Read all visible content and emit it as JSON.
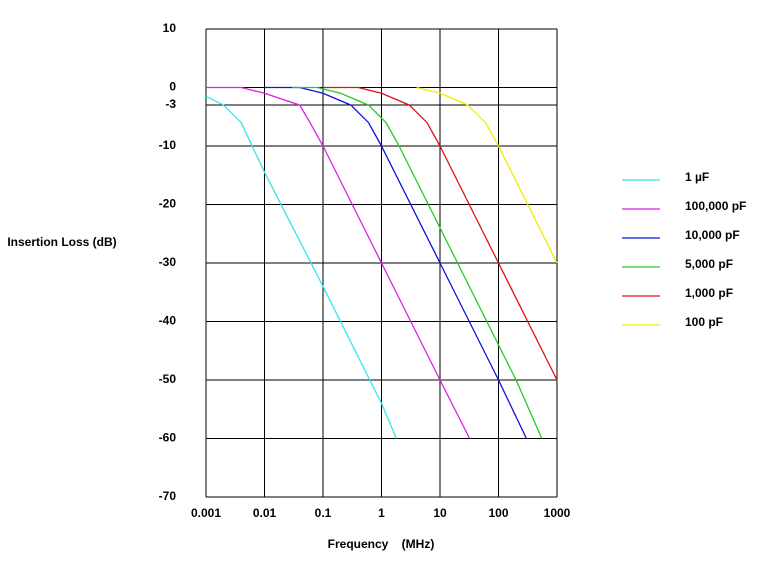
{
  "chart_data": {
    "type": "line",
    "xlabel": "Frequency    (MHz)",
    "ylabel": "Insertion Loss (dB)",
    "xscale": "log",
    "grid": true,
    "legend": "right",
    "xlim": [
      0.001,
      1000
    ],
    "xticks": [
      0.001,
      0.01,
      0.1,
      1,
      10,
      100,
      1000
    ],
    "ylim": [
      -70,
      10
    ],
    "yticks": [
      10,
      0,
      -3,
      -10,
      -20,
      -30,
      -40,
      -50,
      -60,
      -70
    ],
    "series": [
      {
        "name": "1 µF",
        "color": "#33e6e6",
        "x": [
          0.001,
          0.002,
          0.004,
          0.01,
          0.1,
          1,
          1.8
        ],
        "values": [
          -1.5,
          -3,
          -6,
          -14.5,
          -34,
          -54,
          -60
        ]
      },
      {
        "name": "100,000 pF",
        "color": "#e01ee0",
        "x": [
          0.001,
          0.004,
          0.01,
          0.04,
          0.06,
          0.1,
          1,
          10,
          32
        ],
        "values": [
          0,
          0,
          -1,
          -3,
          -6,
          -10,
          -30,
          -50,
          -60
        ]
      },
      {
        "name": "10,000 pF",
        "color": "#1010e0",
        "x": [
          0.01,
          0.04,
          0.1,
          0.3,
          0.6,
          1,
          10,
          100,
          300
        ],
        "values": [
          0,
          0,
          -1,
          -3,
          -6,
          -10,
          -30,
          -50,
          -60
        ]
      },
      {
        "name": "5,000 pF",
        "color": "#22cc22",
        "x": [
          0.03,
          0.08,
          0.2,
          0.6,
          1.2,
          2,
          20,
          200,
          550
        ],
        "values": [
          0,
          0,
          -1,
          -3,
          -6,
          -10,
          -30,
          -50,
          -60
        ]
      },
      {
        "name": "1,000 pF",
        "color": "#e01010",
        "x": [
          0.1,
          0.4,
          1,
          3,
          6,
          10,
          100,
          1000
        ],
        "values": [
          0,
          0,
          -1,
          -3,
          -6,
          -10,
          -30,
          -50
        ]
      },
      {
        "name": "100 pF",
        "color": "#eeee00",
        "x": [
          4,
          10,
          30,
          60,
          100,
          1000
        ],
        "values": [
          0,
          -1,
          -3,
          -6,
          -10,
          -30
        ]
      }
    ]
  }
}
